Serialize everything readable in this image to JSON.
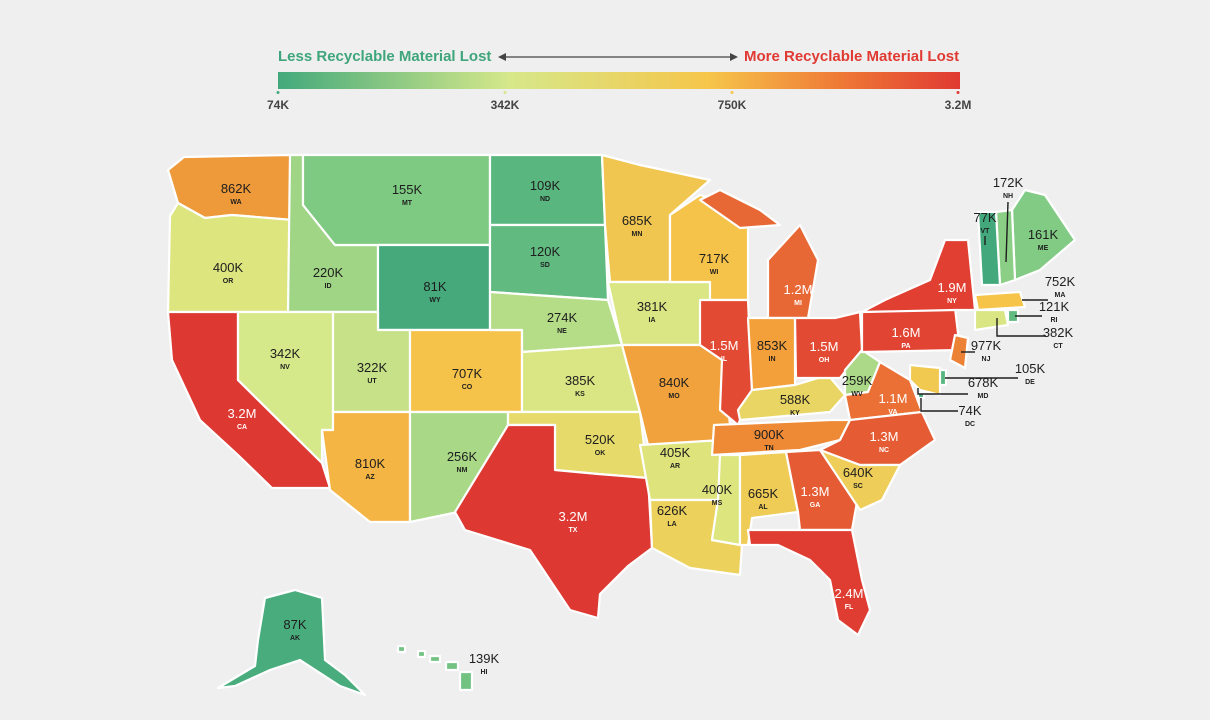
{
  "legend": {
    "left_label": "Less Recyclable Material Lost",
    "right_label": "More Recyclable Material Lost",
    "ticks": [
      "74K",
      "342K",
      "750K",
      "3.2M"
    ],
    "colors": {
      "low": "#43a97c",
      "mid_low": "#d6e88a",
      "mid_high": "#f6c64a",
      "high": "#e03a32"
    }
  },
  "states": {
    "WA": {
      "value": "862K",
      "abbr": "WA",
      "color": "#ee9a3a"
    },
    "OR": {
      "value": "400K",
      "abbr": "OR",
      "color": "#dce57e"
    },
    "CA": {
      "value": "3.2M",
      "abbr": "CA",
      "color": "#dd3832"
    },
    "ID": {
      "value": "220K",
      "abbr": "ID",
      "color": "#9fd585"
    },
    "NV": {
      "value": "342K",
      "abbr": "NV",
      "color": "#d5e98a"
    },
    "MT": {
      "value": "155K",
      "abbr": "MT",
      "color": "#7fca83"
    },
    "WY": {
      "value": "81K",
      "abbr": "WY",
      "color": "#45a97c"
    },
    "UT": {
      "value": "322K",
      "abbr": "UT",
      "color": "#c6e187"
    },
    "AZ": {
      "value": "810K",
      "abbr": "AZ",
      "color": "#f4b544"
    },
    "CO": {
      "value": "707K",
      "abbr": "CO",
      "color": "#f5c24a"
    },
    "NM": {
      "value": "256K",
      "abbr": "NM",
      "color": "#a9d987"
    },
    "ND": {
      "value": "109K",
      "abbr": "ND",
      "color": "#5ab67f"
    },
    "SD": {
      "value": "120K",
      "abbr": "SD",
      "color": "#61ba80"
    },
    "NE": {
      "value": "274K",
      "abbr": "NE",
      "color": "#b5dd88"
    },
    "KS": {
      "value": "385K",
      "abbr": "KS",
      "color": "#d9e683"
    },
    "OK": {
      "value": "520K",
      "abbr": "OK",
      "color": "#e6da6a"
    },
    "TX": {
      "value": "3.2M",
      "abbr": "TX",
      "color": "#dd3832"
    },
    "MN": {
      "value": "685K",
      "abbr": "MN",
      "color": "#f1c650"
    },
    "IA": {
      "value": "381K",
      "abbr": "IA",
      "color": "#d9e683"
    },
    "MO": {
      "value": "840K",
      "abbr": "MO",
      "color": "#f2a23c"
    },
    "AR": {
      "value": "405K",
      "abbr": "AR",
      "color": "#dee47b"
    },
    "LA": {
      "value": "626K",
      "abbr": "LA",
      "color": "#ecd25d"
    },
    "WI": {
      "value": "717K",
      "abbr": "WI",
      "color": "#f5c24a"
    },
    "IL": {
      "value": "1.5M",
      "abbr": "IL",
      "color": "#e24a33"
    },
    "MS": {
      "value": "400K",
      "abbr": "MS",
      "color": "#dce57e"
    },
    "MI": {
      "value": "1.2M",
      "abbr": "MI",
      "color": "#e86835"
    },
    "IN": {
      "value": "853K",
      "abbr": "IN",
      "color": "#f3a03b"
    },
    "KY": {
      "value": "588K",
      "abbr": "KY",
      "color": "#e9d563"
    },
    "TN": {
      "value": "900K",
      "abbr": "TN",
      "color": "#ee8a36"
    },
    "AL": {
      "value": "665K",
      "abbr": "AL",
      "color": "#efcc55"
    },
    "OH": {
      "value": "1.5M",
      "abbr": "OH",
      "color": "#e24a33"
    },
    "GA": {
      "value": "1.3M",
      "abbr": "GA",
      "color": "#e55c34"
    },
    "FL": {
      "value": "2.4M",
      "abbr": "FL",
      "color": "#df3d32"
    },
    "WV": {
      "value": "259K",
      "abbr": "WV",
      "color": "#abd987"
    },
    "VA": {
      "value": "1.1M",
      "abbr": "VA",
      "color": "#ea7036"
    },
    "NC": {
      "value": "1.3M",
      "abbr": "NC",
      "color": "#e55c34"
    },
    "SC": {
      "value": "640K",
      "abbr": "SC",
      "color": "#eece58"
    },
    "PA": {
      "value": "1.6M",
      "abbr": "PA",
      "color": "#e14433"
    },
    "NY": {
      "value": "1.9M",
      "abbr": "NY",
      "color": "#e03f32"
    },
    "ME": {
      "value": "161K",
      "abbr": "ME",
      "color": "#82cb84"
    },
    "NH": {
      "value": "172K",
      "abbr": "NH",
      "color": "#8acf85"
    },
    "VT": {
      "value": "77K",
      "abbr": "VT",
      "color": "#43a97c"
    },
    "MA": {
      "value": "752K",
      "abbr": "MA",
      "color": "#f6c448"
    },
    "RI": {
      "value": "121K",
      "abbr": "RI",
      "color": "#61ba80"
    },
    "CT": {
      "value": "382K",
      "abbr": "CT",
      "color": "#d9e683"
    },
    "NJ": {
      "value": "977K",
      "abbr": "NJ",
      "color": "#ec8235"
    },
    "DE": {
      "value": "105K",
      "abbr": "DE",
      "color": "#57b57f"
    },
    "MD": {
      "value": "678K",
      "abbr": "MD",
      "color": "#f1c850"
    },
    "DC": {
      "value": "74K",
      "abbr": "DC",
      "color": "#43a97c"
    },
    "AK": {
      "value": "87K",
      "abbr": "AK",
      "color": "#49ac7d"
    },
    "HI": {
      "value": "139K",
      "abbr": "HI",
      "color": "#72c382"
    }
  }
}
